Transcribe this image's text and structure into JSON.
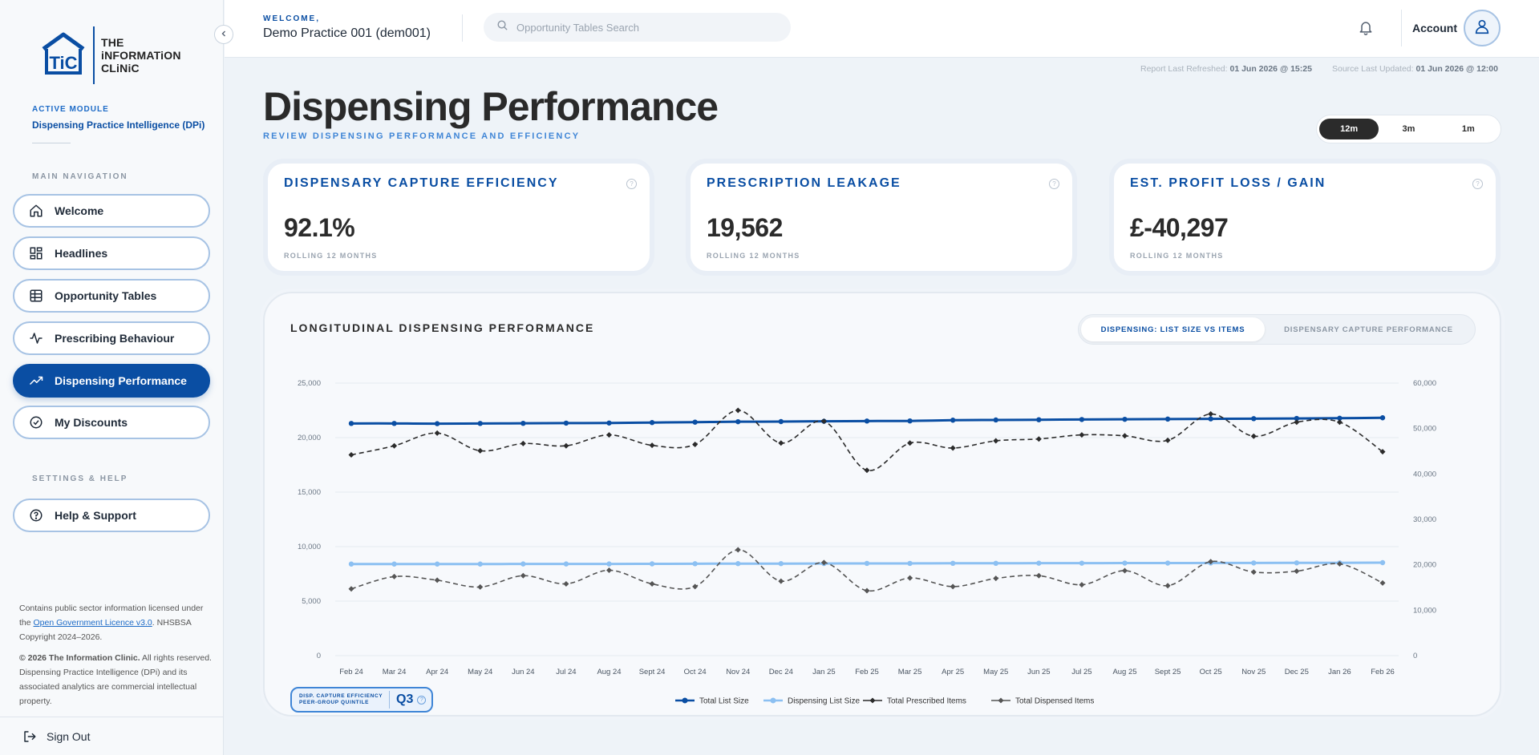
{
  "sidebar": {
    "logo_text": [
      "THE",
      "iNFORMATiON",
      "CLiNiC"
    ],
    "logo_mark": "TiC",
    "active_module_label": "ACTIVE MODULE",
    "active_module_value": "Dispensing Practice Intelligence (DPi)",
    "main_nav_label": "MAIN NAVIGATION",
    "nav": [
      {
        "label": "Welcome",
        "icon": "home-icon"
      },
      {
        "label": "Headlines",
        "icon": "dashboard-icon"
      },
      {
        "label": "Opportunity Tables",
        "icon": "table-icon"
      },
      {
        "label": "Prescribing Behaviour",
        "icon": "activity-icon"
      },
      {
        "label": "Dispensing Performance",
        "icon": "trending-up-icon",
        "active": true
      },
      {
        "label": "My Discounts",
        "icon": "discount-icon"
      }
    ],
    "settings_label": "SETTINGS & HELP",
    "help_label": "Help & Support",
    "footer_line1_a": "Contains public sector information licensed under the ",
    "footer_link": "Open Government Licence v3.0",
    "footer_line1_b": ". NHSBSA Copyright 2024–2026.",
    "footer_copyright_bold": "© 2026 The Information Clinic.",
    "footer_copyright_rest": " All rights reserved. Dispensing Practice Intelligence (DPi) and its associated analytics are commercial intellectual property.",
    "signout_label": "Sign Out"
  },
  "header": {
    "welcome_label": "WELCOME,",
    "practice_name": "Demo Practice 001 (dem001)",
    "search_placeholder": "Opportunity Tables Search",
    "account_label": "Account"
  },
  "refresh": {
    "report_label": "Report Last Refreshed:",
    "report_value": "01 Jun 2026 @ 15:25",
    "source_label": "Source Last Updated:",
    "source_value": "01 Jun 2026 @ 12:00"
  },
  "page": {
    "title": "Dispensing Performance",
    "subtitle": "REVIEW DISPENSING PERFORMANCE AND EFFICIENCY",
    "periods": [
      "12m",
      "3m",
      "1m"
    ],
    "active_period": "12m"
  },
  "kpis": [
    {
      "title": "DISPENSARY CAPTURE EFFICIENCY",
      "value": "92.1%",
      "sub": "ROLLING 12 MONTHS"
    },
    {
      "title": "PRESCRIPTION LEAKAGE",
      "value": "19,562",
      "sub": "ROLLING 12 MONTHS"
    },
    {
      "title": "EST. PROFIT LOSS / GAIN",
      "value": "£-40,297",
      "sub": "ROLLING 12 MONTHS"
    }
  ],
  "chart_card": {
    "title": "LONGITUDINAL DISPENSING PERFORMANCE",
    "tabs": [
      "DISPENSING: LIST SIZE VS ITEMS",
      "DISPENSARY CAPTURE PERFORMANCE"
    ],
    "active_tab": 0,
    "quintile_label_1": "DISP. CAPTURE EFFICIENCY",
    "quintile_label_2": "PEER-GROUP QUINTILE",
    "quintile_value": "Q3"
  },
  "chart_data": {
    "type": "line",
    "x": [
      "Feb 24",
      "Mar 24",
      "Apr 24",
      "May 24",
      "Jun 24",
      "Jul 24",
      "Aug 24",
      "Sept 24",
      "Oct 24",
      "Nov 24",
      "Dec 24",
      "Jan 25",
      "Feb 25",
      "Mar 25",
      "Apr 25",
      "May 25",
      "Jun 25",
      "Jul 25",
      "Aug 25",
      "Sept 25",
      "Oct 25",
      "Nov 25",
      "Dec 25",
      "Jan 26",
      "Feb 26"
    ],
    "y_left": {
      "ticks": [
        "0",
        "5,000",
        "10,000",
        "15,000",
        "20,000",
        "25,000"
      ],
      "lim": [
        0,
        25000
      ]
    },
    "y_right": {
      "ticks": [
        "0",
        "10,000",
        "20,000",
        "30,000",
        "40,000",
        "50,000",
        "60,000"
      ],
      "lim": [
        0,
        60000
      ]
    },
    "series": [
      {
        "name": "Total List Size",
        "axis": "left",
        "style": "solid",
        "color": "#0a4ea3",
        "values": [
          21300,
          21300,
          21280,
          21300,
          21310,
          21330,
          21340,
          21380,
          21420,
          21460,
          21470,
          21500,
          21520,
          21530,
          21600,
          21620,
          21640,
          21660,
          21680,
          21700,
          21720,
          21740,
          21760,
          21780,
          21820
        ]
      },
      {
        "name": "Dispensing List Size",
        "axis": "left",
        "style": "solid",
        "color": "#8cc0f2",
        "values": [
          8400,
          8400,
          8400,
          8400,
          8410,
          8410,
          8410,
          8420,
          8430,
          8440,
          8440,
          8450,
          8460,
          8460,
          8470,
          8470,
          8480,
          8480,
          8490,
          8490,
          8500,
          8500,
          8510,
          8510,
          8530
        ]
      },
      {
        "name": "Total Prescribed Items",
        "axis": "right",
        "style": "dashed",
        "color": "#2b2b2b",
        "values": [
          44200,
          46200,
          49000,
          45100,
          46700,
          46200,
          48600,
          46300,
          46500,
          54000,
          46800,
          51600,
          40800,
          46800,
          45700,
          47300,
          47700,
          48600,
          48400,
          47400,
          53200,
          48300,
          51400,
          51400,
          44900
        ]
      },
      {
        "name": "Total Dispensed Items",
        "axis": "right",
        "style": "dashed",
        "color": "#555555",
        "values": [
          14700,
          17400,
          16600,
          15100,
          17600,
          15800,
          18800,
          15800,
          15200,
          23300,
          16400,
          20500,
          14300,
          17100,
          15200,
          17000,
          17600,
          15600,
          18700,
          15400,
          20700,
          18400,
          18600,
          20200,
          16000
        ]
      }
    ],
    "legend_position": "bottom-center",
    "grid": true
  }
}
